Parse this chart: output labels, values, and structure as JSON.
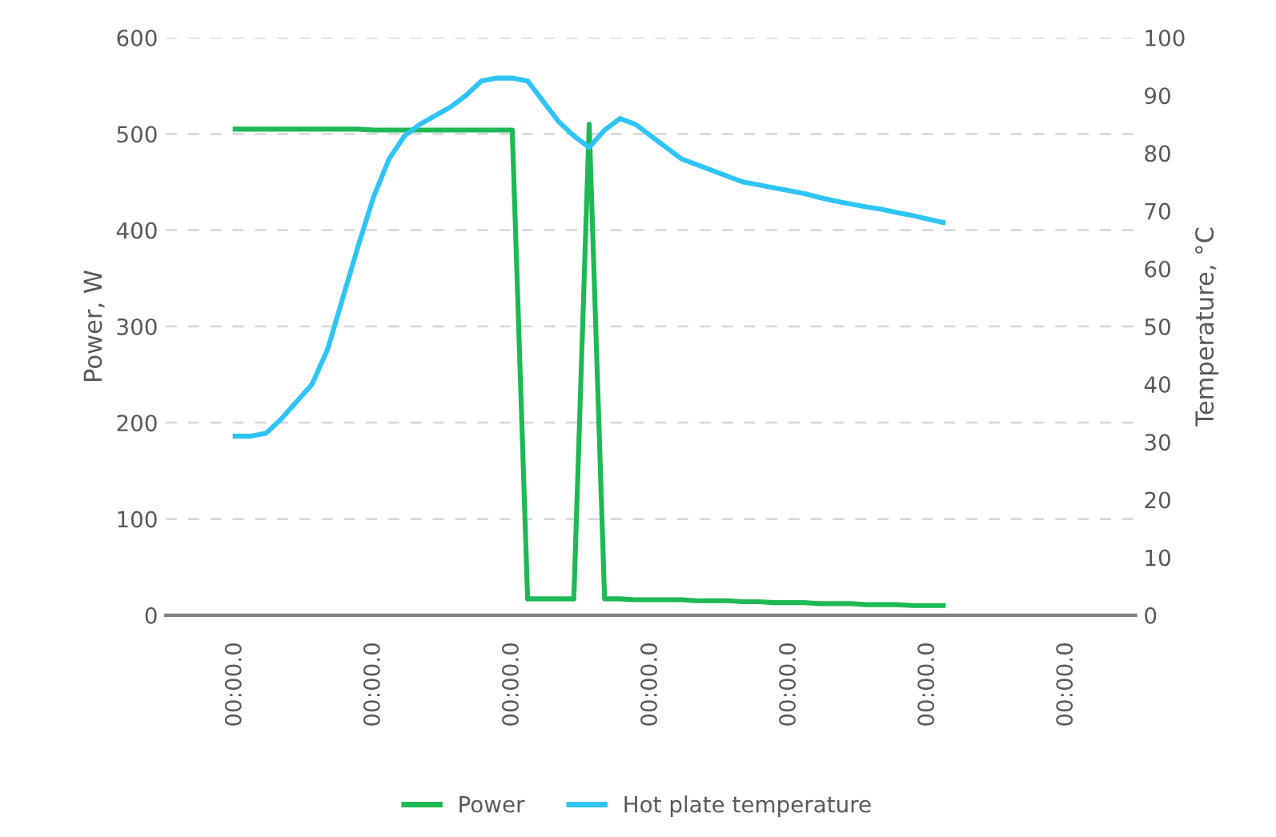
{
  "chart_data": {
    "type": "line",
    "ylabel": "Power, W",
    "y2label": "Temperature, °C",
    "categories": [
      null,
      null,
      null,
      null,
      "00:00.0",
      null,
      null,
      null,
      null,
      null,
      null,
      null,
      null,
      "00:00.0",
      null,
      null,
      null,
      null,
      null,
      null,
      null,
      null,
      "00:00.0",
      null,
      null,
      null,
      null,
      null,
      null,
      null,
      null,
      "00:00.0",
      null,
      null,
      null,
      null,
      null,
      null,
      null,
      null,
      "00:00.0",
      null,
      null,
      null,
      null,
      null,
      null,
      null,
      null,
      "00:00.0",
      null,
      null,
      null,
      null,
      null,
      null,
      null,
      null,
      "00:00.0",
      null,
      null,
      null,
      null
    ],
    "ylim": [
      0,
      600
    ],
    "yticks": [
      0,
      100,
      200,
      300,
      400,
      500,
      600
    ],
    "y2lim": [
      0,
      100
    ],
    "y2ticks": [
      0,
      10,
      20,
      30,
      40,
      50,
      60,
      70,
      80,
      90,
      100
    ],
    "grid": "y",
    "legend": "bottom",
    "marker": "none",
    "line_style": "solid",
    "series": [
      {
        "name": "Power",
        "color": "#1db954",
        "values": [
          null,
          null,
          null,
          null,
          505,
          505,
          505,
          505,
          505,
          505,
          505,
          505,
          505,
          504,
          504,
          504,
          504,
          504,
          504,
          504,
          504,
          504,
          504,
          17,
          17,
          17,
          17,
          510,
          17,
          17,
          16,
          16,
          16,
          16,
          15,
          15,
          15,
          14,
          14,
          13,
          13,
          13,
          12,
          12,
          12,
          11,
          11,
          11,
          10,
          10,
          10,
          null,
          null,
          null,
          null,
          null,
          null,
          null,
          null,
          null,
          null,
          null,
          null
        ]
      },
      {
        "name": "Hot plate temperature",
        "color": "#2ec4f5",
        "axis": "y2",
        "values": [
          null,
          null,
          null,
          null,
          31,
          31,
          31.5,
          34,
          37,
          40,
          46,
          55,
          64,
          72.5,
          79,
          83,
          85,
          86.5,
          88,
          90,
          92.5,
          93,
          93,
          92.5,
          89,
          85.5,
          83,
          81,
          84,
          86,
          85,
          83,
          81,
          79,
          78,
          77,
          76,
          75,
          74.5,
          74,
          73.5,
          73,
          72.3,
          71.7,
          71.2,
          70.7,
          70.3,
          69.7,
          69.2,
          68.6,
          68,
          null,
          null,
          null,
          null,
          null,
          null,
          null,
          null,
          null,
          null,
          null,
          null
        ]
      }
    ]
  }
}
